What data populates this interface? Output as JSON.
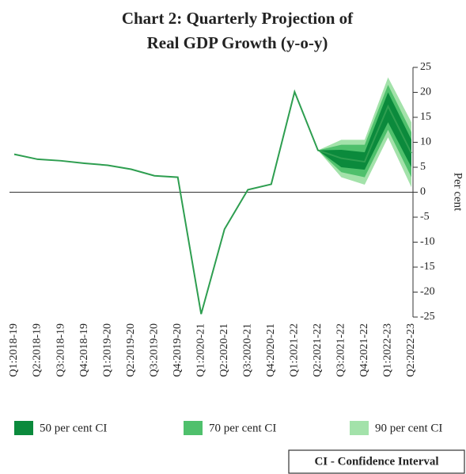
{
  "chart_data": {
    "type": "fan",
    "title": "Chart 2: Quarterly Projection of",
    "subtitle": "Real GDP Growth (y-o-y)",
    "y_label": "Per cent",
    "note": "CI - Confidence Interval",
    "categories": [
      "Q1:2018-19",
      "Q2:2018-19",
      "Q3:2018-19",
      "Q4:2018-19",
      "Q1:2019-20",
      "Q2:2019-20",
      "Q3:2019-20",
      "Q4:2019-20",
      "Q1:2020-21",
      "Q2:2020-21",
      "Q3:2020-21",
      "Q4:2020-21",
      "Q1:2021-22",
      "Q2:2021-22",
      "Q3:2021-22",
      "Q4:2021-22",
      "Q1:2022-23",
      "Q2:2022-23"
    ],
    "values": [
      7.6,
      6.6,
      6.3,
      5.8,
      5.4,
      4.6,
      3.3,
      3.0,
      -24.4,
      -7.4,
      0.5,
      1.6,
      20.1,
      8.4,
      6.8,
      6.1,
      17.2,
      7.8
    ],
    "color": "#2e9e50",
    "bands": [
      {
        "name": "90 per cent CI",
        "color": "#a3e2aa",
        "lower": [
          null,
          null,
          null,
          null,
          null,
          null,
          null,
          null,
          null,
          null,
          null,
          null,
          null,
          8.4,
          3,
          1.5,
          11,
          1
        ],
        "upper": [
          null,
          null,
          null,
          null,
          null,
          null,
          null,
          null,
          null,
          null,
          null,
          null,
          null,
          8.4,
          10.5,
          10.5,
          23,
          14
        ]
      },
      {
        "name": "70 per cent CI",
        "color": "#4fc06c",
        "lower": [
          null,
          null,
          null,
          null,
          null,
          null,
          null,
          null,
          null,
          null,
          null,
          null,
          null,
          8.4,
          4,
          3,
          12.5,
          3
        ],
        "upper": [
          null,
          null,
          null,
          null,
          null,
          null,
          null,
          null,
          null,
          null,
          null,
          null,
          null,
          8.4,
          9.5,
          9.5,
          21.5,
          12
        ]
      },
      {
        "name": "50 per cent CI",
        "color": "#0b8a3c",
        "lower": [
          null,
          null,
          null,
          null,
          null,
          null,
          null,
          null,
          null,
          null,
          null,
          null,
          null,
          8.4,
          5,
          4.5,
          14,
          5
        ],
        "upper": [
          null,
          null,
          null,
          null,
          null,
          null,
          null,
          null,
          null,
          null,
          null,
          null,
          null,
          8.4,
          8.5,
          8,
          20,
          10.5
        ]
      }
    ],
    "ylim": [
      -25,
      25
    ],
    "yticks": [
      25,
      20,
      15,
      10,
      5,
      0,
      -5,
      -10,
      -15,
      -20,
      -25
    ]
  }
}
